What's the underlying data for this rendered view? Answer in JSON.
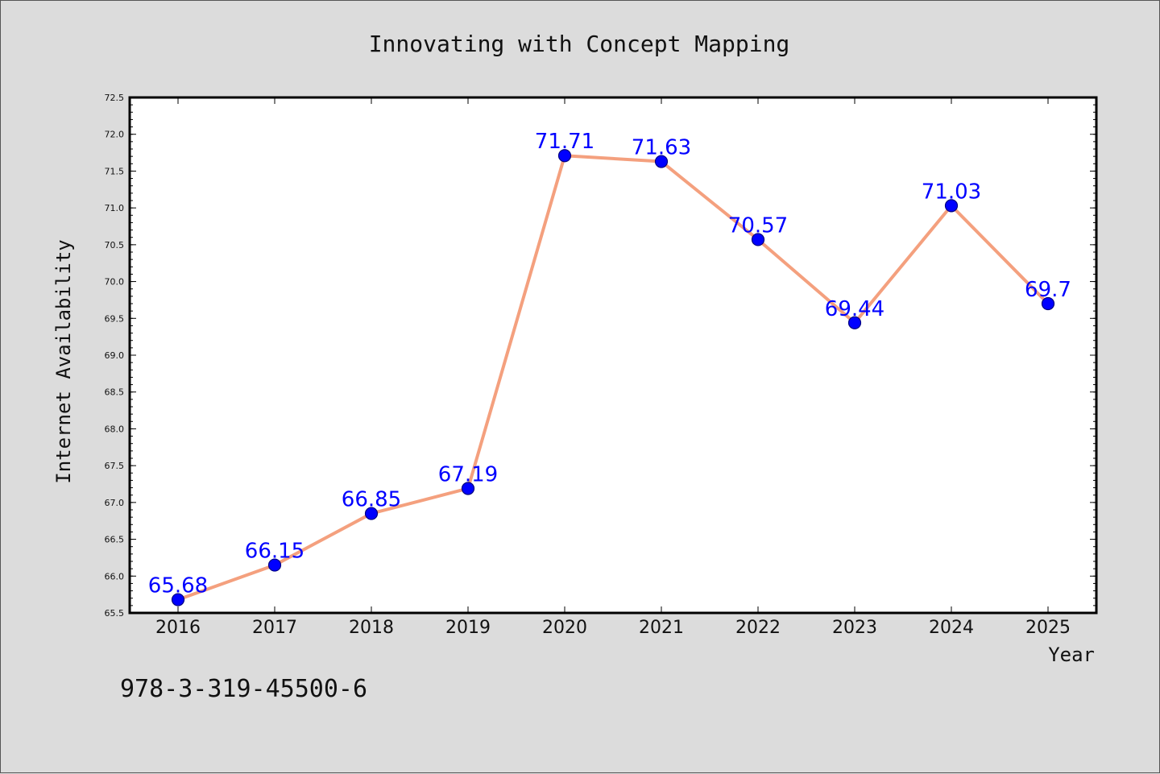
{
  "chart_data": {
    "type": "line",
    "title": "Innovating with Concept Mapping",
    "xlabel": "Year",
    "ylabel": "Internet Availability",
    "categories": [
      "2016",
      "2017",
      "2018",
      "2019",
      "2020",
      "2021",
      "2022",
      "2023",
      "2024",
      "2025"
    ],
    "series": [
      {
        "values": [
          65.68,
          66.15,
          66.85,
          67.19,
          71.71,
          71.63,
          70.57,
          69.44,
          71.03,
          69.7
        ],
        "data_labels": [
          "65.68",
          "66.15",
          "66.85",
          "67.19",
          "71.71",
          "71.63",
          "70.57",
          "69.44",
          "71.03",
          "69.7"
        ]
      }
    ],
    "ylim": [
      65.5,
      72.5
    ],
    "yticks": [
      "65.5",
      "66.0",
      "66.5",
      "67.0",
      "67.5",
      "68.0",
      "68.5",
      "69.0",
      "69.5",
      "70.0",
      "70.5",
      "71.0",
      "71.5",
      "72.0",
      "72.5"
    ],
    "grid": false,
    "legend": "none"
  },
  "footer": {
    "isbn": "978-3-319-45500-6"
  },
  "colors": {
    "line": "#f4a07e",
    "marker": "#0000ff",
    "marker_edge": "#000080",
    "data_label": "#0000ff",
    "background": "#dcdcdc",
    "plot_background": "#ffffff"
  }
}
